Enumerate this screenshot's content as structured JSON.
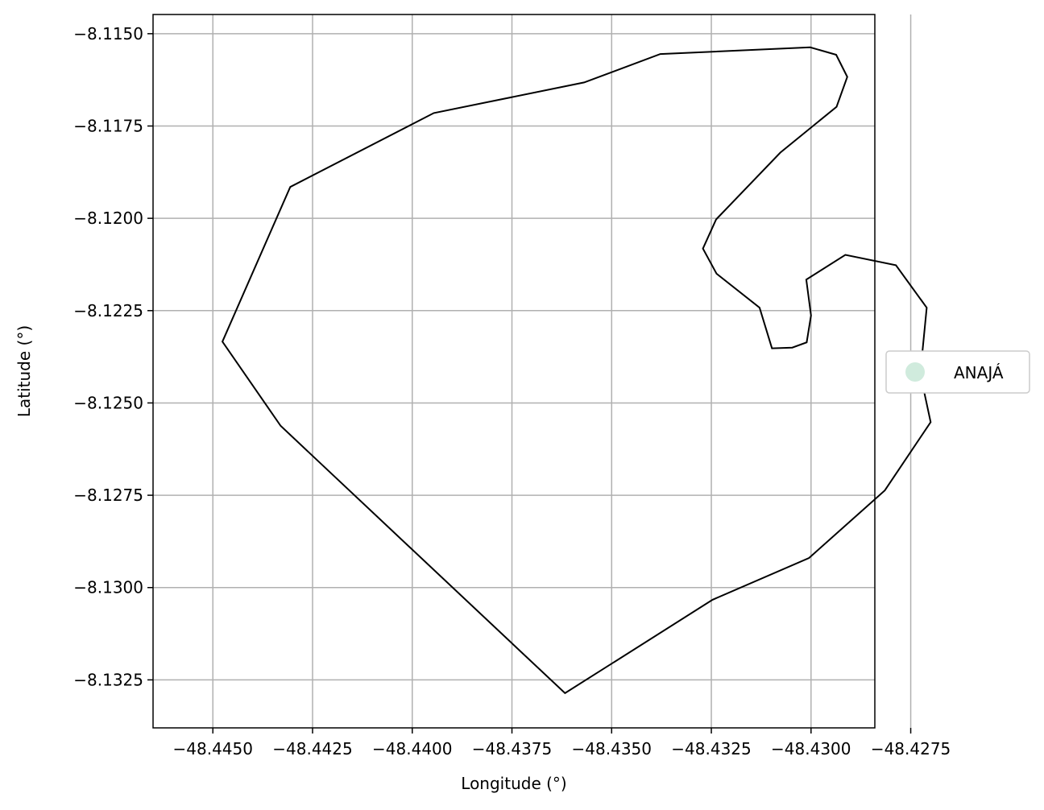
{
  "chart_data": {
    "type": "map",
    "xlabel": "Longitude (°)",
    "ylabel": "Latitude (°)",
    "xlim": [
      -48.4465,
      -48.4284
    ],
    "ylim": [
      -8.1338,
      -8.11448
    ],
    "grid": true,
    "x_ticks": [
      -48.445,
      -48.4425,
      -48.44,
      -48.4375,
      -48.435,
      -48.4325,
      -48.43,
      -48.4275
    ],
    "x_tick_labels": [
      "−48.4450",
      "−48.4425",
      "−48.4400",
      "−48.4375",
      "−48.4350",
      "−48.4325",
      "−48.4300",
      "−48.4275"
    ],
    "y_ticks": [
      -8.115,
      -8.1175,
      -8.12,
      -8.1225,
      -8.125,
      -8.1275,
      -8.13,
      -8.1325
    ],
    "y_tick_labels": [
      "−8.1150",
      "−8.1175",
      "−8.1200",
      "−8.1225",
      "−8.1250",
      "−8.1275",
      "−8.1300",
      "−8.1325"
    ],
    "legend": {
      "placement": "center-right-outside",
      "entries": [
        {
          "label": "ANAJÁ",
          "color": "#d0ebdd"
        }
      ]
    },
    "boundary": {
      "stroke": "#000000",
      "points": [
        [
          -48.44306,
          -8.11915
        ],
        [
          -48.43946,
          -8.11715
        ],
        [
          -48.43569,
          -8.11632
        ],
        [
          -48.43378,
          -8.11555
        ],
        [
          -48.43002,
          -8.11537
        ],
        [
          -48.42937,
          -8.11557
        ],
        [
          -48.42909,
          -8.11617
        ],
        [
          -48.42936,
          -8.11698
        ],
        [
          -48.43077,
          -8.11822
        ],
        [
          -48.43238,
          -8.12003
        ],
        [
          -48.43271,
          -8.12082
        ],
        [
          -48.43237,
          -8.1215
        ],
        [
          -48.43129,
          -8.12242
        ],
        [
          -48.43098,
          -8.12352
        ],
        [
          -48.43047,
          -8.1235
        ],
        [
          -48.43011,
          -8.12336
        ],
        [
          -48.43,
          -8.12263
        ],
        [
          -48.43012,
          -8.12166
        ],
        [
          -48.42914,
          -8.12099
        ],
        [
          -48.42787,
          -8.12127
        ],
        [
          -48.4271,
          -8.12242
        ],
        [
          -48.42726,
          -8.12421
        ],
        [
          -48.427,
          -8.12552
        ],
        [
          -48.42815,
          -8.12737
        ],
        [
          -48.43005,
          -8.1292
        ],
        [
          -48.43247,
          -8.13033
        ],
        [
          -48.43617,
          -8.13286
        ],
        [
          -48.4433,
          -8.12562
        ],
        [
          -48.44476,
          -8.12334
        ],
        [
          -48.44306,
          -8.11915
        ]
      ]
    }
  }
}
